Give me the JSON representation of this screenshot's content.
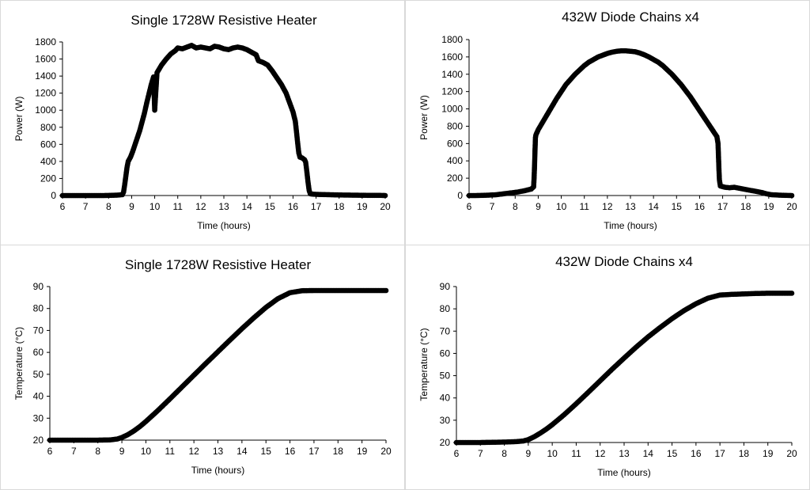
{
  "chart_data": [
    {
      "type": "scatter",
      "title": "Single 1728W Resistive Heater",
      "xlabel": "Time (hours)",
      "ylabel": "Power (W)",
      "xlim": [
        6,
        20
      ],
      "ylim": [
        0,
        1800
      ],
      "xticks": [
        "6",
        "7",
        "8",
        "9",
        "10",
        "11",
        "12",
        "13",
        "14",
        "15",
        "16",
        "17",
        "18",
        "19",
        "20"
      ],
      "yticks": [
        "0",
        "200",
        "400",
        "600",
        "800",
        "1000",
        "1200",
        "1400",
        "1600",
        "1800"
      ],
      "series": [
        {
          "name": "Power",
          "points": [
            [
              6.0,
              0
            ],
            [
              6.3,
              0
            ],
            [
              6.6,
              0
            ],
            [
              6.9,
              0
            ],
            [
              7.2,
              0
            ],
            [
              7.5,
              0
            ],
            [
              7.8,
              0
            ],
            [
              8.1,
              2
            ],
            [
              8.4,
              5
            ],
            [
              8.6,
              10
            ],
            [
              8.65,
              40
            ],
            [
              8.7,
              130
            ],
            [
              8.75,
              230
            ],
            [
              8.8,
              330
            ],
            [
              8.85,
              400
            ],
            [
              8.95,
              450
            ],
            [
              9.05,
              520
            ],
            [
              9.15,
              600
            ],
            [
              9.25,
              680
            ],
            [
              9.35,
              760
            ],
            [
              9.45,
              860
            ],
            [
              9.55,
              960
            ],
            [
              9.65,
              1080
            ],
            [
              9.75,
              1190
            ],
            [
              9.85,
              1300
            ],
            [
              9.95,
              1390
            ],
            [
              10.0,
              1000
            ],
            [
              10.1,
              1440
            ],
            [
              10.3,
              1530
            ],
            [
              10.5,
              1600
            ],
            [
              10.7,
              1660
            ],
            [
              10.9,
              1700
            ],
            [
              11.0,
              1730
            ],
            [
              11.2,
              1720
            ],
            [
              11.4,
              1740
            ],
            [
              11.6,
              1760
            ],
            [
              11.8,
              1730
            ],
            [
              12.0,
              1740
            ],
            [
              12.2,
              1730
            ],
            [
              12.4,
              1720
            ],
            [
              12.6,
              1750
            ],
            [
              12.8,
              1740
            ],
            [
              13.0,
              1720
            ],
            [
              13.2,
              1710
            ],
            [
              13.4,
              1730
            ],
            [
              13.6,
              1740
            ],
            [
              13.8,
              1730
            ],
            [
              14.0,
              1710
            ],
            [
              14.2,
              1680
            ],
            [
              14.4,
              1650
            ],
            [
              14.5,
              1580
            ],
            [
              14.7,
              1560
            ],
            [
              14.9,
              1530
            ],
            [
              15.1,
              1460
            ],
            [
              15.3,
              1380
            ],
            [
              15.5,
              1300
            ],
            [
              15.7,
              1200
            ],
            [
              15.85,
              1090
            ],
            [
              16.0,
              980
            ],
            [
              16.1,
              870
            ],
            [
              16.15,
              750
            ],
            [
              16.2,
              620
            ],
            [
              16.25,
              500
            ],
            [
              16.3,
              450
            ],
            [
              16.4,
              440
            ],
            [
              16.5,
              420
            ],
            [
              16.55,
              390
            ],
            [
              16.6,
              280
            ],
            [
              16.65,
              160
            ],
            [
              16.7,
              60
            ],
            [
              16.75,
              20
            ],
            [
              16.9,
              15
            ],
            [
              17.2,
              12
            ],
            [
              17.5,
              10
            ],
            [
              17.8,
              8
            ],
            [
              18.1,
              6
            ],
            [
              18.4,
              5
            ],
            [
              18.7,
              4
            ],
            [
              19.0,
              3
            ],
            [
              19.3,
              2
            ],
            [
              19.6,
              2
            ],
            [
              19.9,
              1
            ],
            [
              20.0,
              0
            ]
          ]
        }
      ]
    },
    {
      "type": "scatter",
      "title": "432W Diode Chains x4",
      "xlabel": "Time (hours)",
      "ylabel": "Power (W)",
      "xlim": [
        6,
        20
      ],
      "ylim": [
        0,
        1800
      ],
      "xticks": [
        "6",
        "7",
        "8",
        "9",
        "10",
        "11",
        "12",
        "13",
        "14",
        "15",
        "16",
        "17",
        "18",
        "19",
        "20"
      ],
      "yticks": [
        "0",
        "200",
        "400",
        "600",
        "800",
        "1000",
        "1200",
        "1400",
        "1600",
        "1800"
      ],
      "series": [
        {
          "name": "Power",
          "points": [
            [
              6.0,
              0
            ],
            [
              6.3,
              0
            ],
            [
              6.6,
              2
            ],
            [
              6.9,
              5
            ],
            [
              7.2,
              10
            ],
            [
              7.5,
              20
            ],
            [
              7.8,
              30
            ],
            [
              8.1,
              40
            ],
            [
              8.4,
              55
            ],
            [
              8.7,
              75
            ],
            [
              8.8,
              100
            ],
            [
              8.82,
              200
            ],
            [
              8.84,
              340
            ],
            [
              8.86,
              520
            ],
            [
              8.88,
              670
            ],
            [
              8.9,
              700
            ],
            [
              9.0,
              760
            ],
            [
              9.2,
              850
            ],
            [
              9.4,
              940
            ],
            [
              9.6,
              1030
            ],
            [
              9.8,
              1120
            ],
            [
              10.0,
              1200
            ],
            [
              10.2,
              1280
            ],
            [
              10.4,
              1340
            ],
            [
              10.6,
              1400
            ],
            [
              10.8,
              1450
            ],
            [
              11.0,
              1500
            ],
            [
              11.2,
              1540
            ],
            [
              11.4,
              1570
            ],
            [
              11.6,
              1600
            ],
            [
              11.8,
              1620
            ],
            [
              12.0,
              1640
            ],
            [
              12.2,
              1655
            ],
            [
              12.4,
              1665
            ],
            [
              12.6,
              1670
            ],
            [
              12.8,
              1670
            ],
            [
              13.0,
              1665
            ],
            [
              13.2,
              1660
            ],
            [
              13.4,
              1645
            ],
            [
              13.6,
              1625
            ],
            [
              13.8,
              1600
            ],
            [
              14.0,
              1570
            ],
            [
              14.2,
              1540
            ],
            [
              14.4,
              1500
            ],
            [
              14.6,
              1450
            ],
            [
              14.8,
              1400
            ],
            [
              15.0,
              1340
            ],
            [
              15.2,
              1280
            ],
            [
              15.4,
              1210
            ],
            [
              15.6,
              1140
            ],
            [
              15.8,
              1060
            ],
            [
              16.0,
              980
            ],
            [
              16.2,
              900
            ],
            [
              16.4,
              820
            ],
            [
              16.6,
              740
            ],
            [
              16.75,
              680
            ],
            [
              16.8,
              600
            ],
            [
              16.82,
              450
            ],
            [
              16.84,
              300
            ],
            [
              16.86,
              180
            ],
            [
              16.9,
              110
            ],
            [
              17.1,
              95
            ],
            [
              17.3,
              90
            ],
            [
              17.5,
              95
            ],
            [
              17.7,
              85
            ],
            [
              17.9,
              75
            ],
            [
              18.1,
              65
            ],
            [
              18.3,
              55
            ],
            [
              18.5,
              45
            ],
            [
              18.7,
              35
            ],
            [
              18.9,
              20
            ],
            [
              19.1,
              10
            ],
            [
              19.4,
              5
            ],
            [
              19.7,
              2
            ],
            [
              20.0,
              0
            ]
          ]
        }
      ]
    },
    {
      "type": "scatter",
      "title": "Single 1728W Resistive Heater",
      "xlabel": "Time (hours)",
      "ylabel": "Temperature (°C)",
      "xlim": [
        6,
        20
      ],
      "ylim": [
        20,
        90
      ],
      "xticks": [
        "6",
        "7",
        "8",
        "9",
        "10",
        "11",
        "12",
        "13",
        "14",
        "15",
        "16",
        "17",
        "18",
        "19",
        "20"
      ],
      "yticks": [
        "20",
        "30",
        "40",
        "50",
        "60",
        "70",
        "80",
        "90"
      ],
      "series": [
        {
          "name": "Temperature",
          "points": [
            [
              6.0,
              20.0
            ],
            [
              6.5,
              20.0
            ],
            [
              7.0,
              20.0
            ],
            [
              7.5,
              20.0
            ],
            [
              8.0,
              20.0
            ],
            [
              8.5,
              20.1
            ],
            [
              8.8,
              20.5
            ],
            [
              9.0,
              21.2
            ],
            [
              9.25,
              22.5
            ],
            [
              9.5,
              24.2
            ],
            [
              9.75,
              26.2
            ],
            [
              10.0,
              28.5
            ],
            [
              10.5,
              33.5
            ],
            [
              11.0,
              38.8
            ],
            [
              11.5,
              44.2
            ],
            [
              12.0,
              49.6
            ],
            [
              12.5,
              55.0
            ],
            [
              13.0,
              60.3
            ],
            [
              13.5,
              65.6
            ],
            [
              14.0,
              70.8
            ],
            [
              14.5,
              75.8
            ],
            [
              15.0,
              80.5
            ],
            [
              15.5,
              84.5
            ],
            [
              16.0,
              87.2
            ],
            [
              16.5,
              88.1
            ],
            [
              17.0,
              88.2
            ],
            [
              17.5,
              88.2
            ],
            [
              18.0,
              88.2
            ],
            [
              18.5,
              88.2
            ],
            [
              19.0,
              88.2
            ],
            [
              19.5,
              88.2
            ],
            [
              20.0,
              88.2
            ]
          ]
        }
      ]
    },
    {
      "type": "scatter",
      "title": "432W Diode Chains x4",
      "xlabel": "Time (hours)",
      "ylabel": "Temperature (°C)",
      "xlim": [
        6,
        20
      ],
      "ylim": [
        20,
        90
      ],
      "xticks": [
        "6",
        "7",
        "8",
        "9",
        "10",
        "11",
        "12",
        "13",
        "14",
        "15",
        "16",
        "17",
        "18",
        "19",
        "20"
      ],
      "yticks": [
        "20",
        "30",
        "40",
        "50",
        "60",
        "70",
        "80",
        "90"
      ],
      "series": [
        {
          "name": "Temperature",
          "points": [
            [
              6.0,
              20.0
            ],
            [
              6.5,
              20.0
            ],
            [
              7.0,
              20.0
            ],
            [
              7.5,
              20.1
            ],
            [
              8.0,
              20.2
            ],
            [
              8.5,
              20.4
            ],
            [
              8.8,
              20.7
            ],
            [
              9.0,
              21.3
            ],
            [
              9.25,
              22.6
            ],
            [
              9.5,
              24.2
            ],
            [
              9.75,
              26.0
            ],
            [
              10.0,
              28.0
            ],
            [
              10.5,
              32.5
            ],
            [
              11.0,
              37.4
            ],
            [
              11.5,
              42.5
            ],
            [
              12.0,
              47.7
            ],
            [
              12.5,
              52.9
            ],
            [
              13.0,
              57.9
            ],
            [
              13.5,
              62.8
            ],
            [
              14.0,
              67.4
            ],
            [
              14.5,
              71.6
            ],
            [
              15.0,
              75.6
            ],
            [
              15.5,
              79.2
            ],
            [
              16.0,
              82.3
            ],
            [
              16.5,
              84.8
            ],
            [
              17.0,
              86.2
            ],
            [
              17.5,
              86.5
            ],
            [
              18.0,
              86.7
            ],
            [
              18.5,
              86.9
            ],
            [
              19.0,
              87.0
            ],
            [
              19.5,
              87.0
            ],
            [
              20.0,
              87.0
            ]
          ]
        }
      ]
    }
  ]
}
